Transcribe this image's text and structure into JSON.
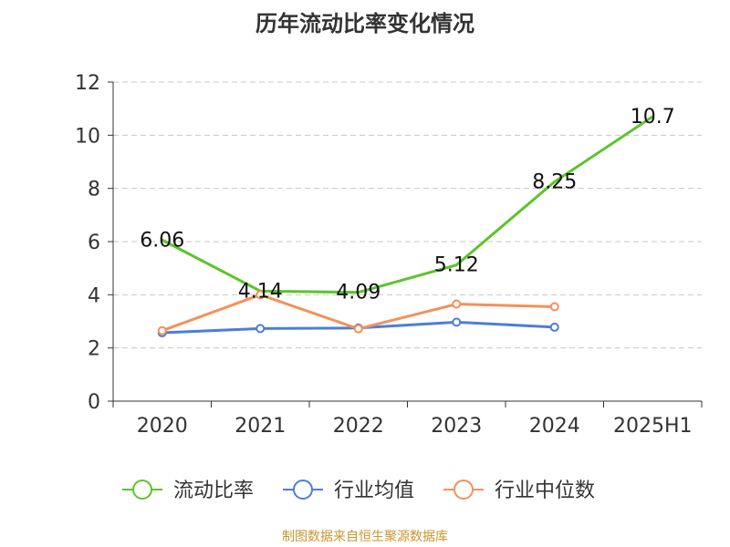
{
  "title": "历年流动比率变化情况",
  "source": "制图数据来自恒生聚源数据库",
  "colors": {
    "source_text": "#c8962e",
    "axis": "#333333",
    "grid": "#c8c8c8"
  },
  "chart_data": {
    "type": "line",
    "title": "历年流动比率变化情况",
    "categories": [
      "2020",
      "2021",
      "2022",
      "2023",
      "2024",
      "2025H1"
    ],
    "ylim": [
      0,
      12
    ],
    "yticks": [
      0,
      2,
      4,
      6,
      8,
      10,
      12
    ],
    "grid": "horizontal dashed",
    "legend_position": "bottom",
    "series": [
      {
        "name": "流动比率",
        "color": "#5cc429",
        "values": [
          6.06,
          4.14,
          4.09,
          5.12,
          8.25,
          10.7
        ],
        "labels": [
          "6.06",
          "4.14",
          "4.09",
          "5.12",
          "8.25",
          "10.7"
        ],
        "markers": false
      },
      {
        "name": "行业均值",
        "color": "#4d7ddb",
        "values": [
          2.57,
          2.73,
          2.75,
          2.97,
          2.78,
          null
        ],
        "markers": true
      },
      {
        "name": "行业中位数",
        "color": "#f5905a",
        "values": [
          2.65,
          4.0,
          2.72,
          3.65,
          3.55,
          null
        ],
        "markers": true
      }
    ]
  }
}
